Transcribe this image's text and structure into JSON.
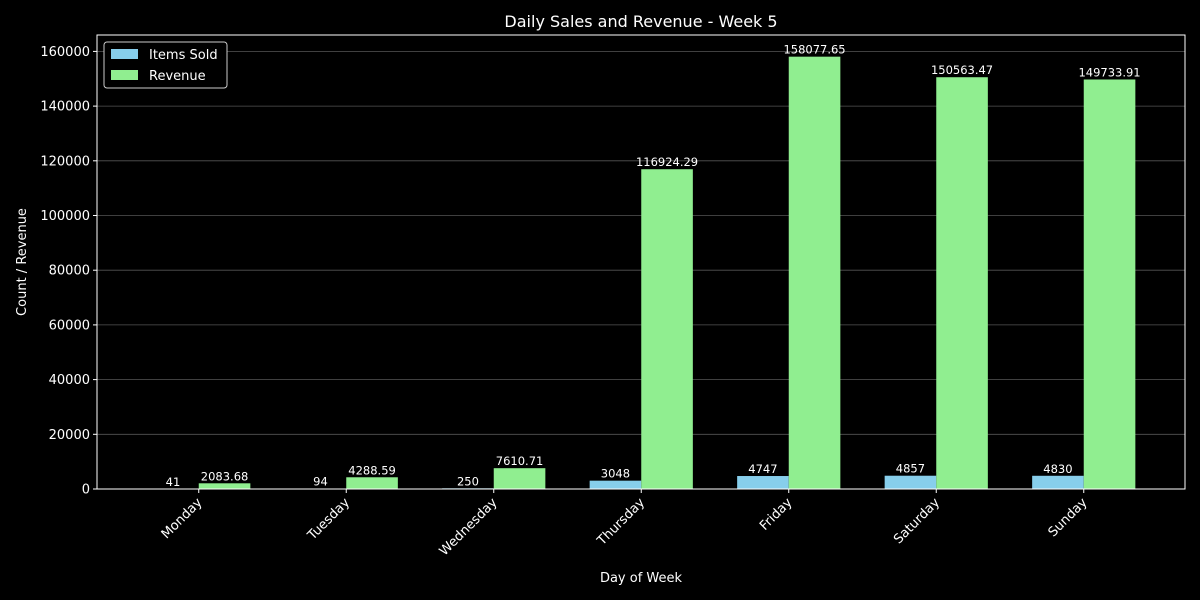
{
  "chart_data": {
    "type": "bar",
    "title": "Daily Sales and Revenue - Week 5",
    "xlabel": "Day of Week",
    "ylabel": "Count / Revenue",
    "categories": [
      "Monday",
      "Tuesday",
      "Wednesday",
      "Thursday",
      "Friday",
      "Saturday",
      "Sunday"
    ],
    "series": [
      {
        "name": "Items Sold",
        "color": "#87ceeb",
        "values": [
          41,
          94,
          250,
          3048,
          4747,
          4857,
          4830
        ],
        "labels": [
          "41",
          "94",
          "250",
          "3048",
          "4747",
          "4857",
          "4830"
        ]
      },
      {
        "name": "Revenue",
        "color": "#90ee90",
        "values": [
          2083.68,
          4288.59,
          7610.71,
          116924.29,
          158077.65,
          150563.47,
          149733.91
        ],
        "labels": [
          "2083.68",
          "4288.59",
          "7610.71",
          "116924.29",
          "158077.65",
          "150563.47",
          "149733.91"
        ]
      }
    ],
    "ylim": [
      0,
      166000
    ],
    "yticks": [
      0,
      20000,
      40000,
      60000,
      80000,
      100000,
      120000,
      140000,
      160000
    ],
    "grid": true,
    "legend": "top-left"
  }
}
